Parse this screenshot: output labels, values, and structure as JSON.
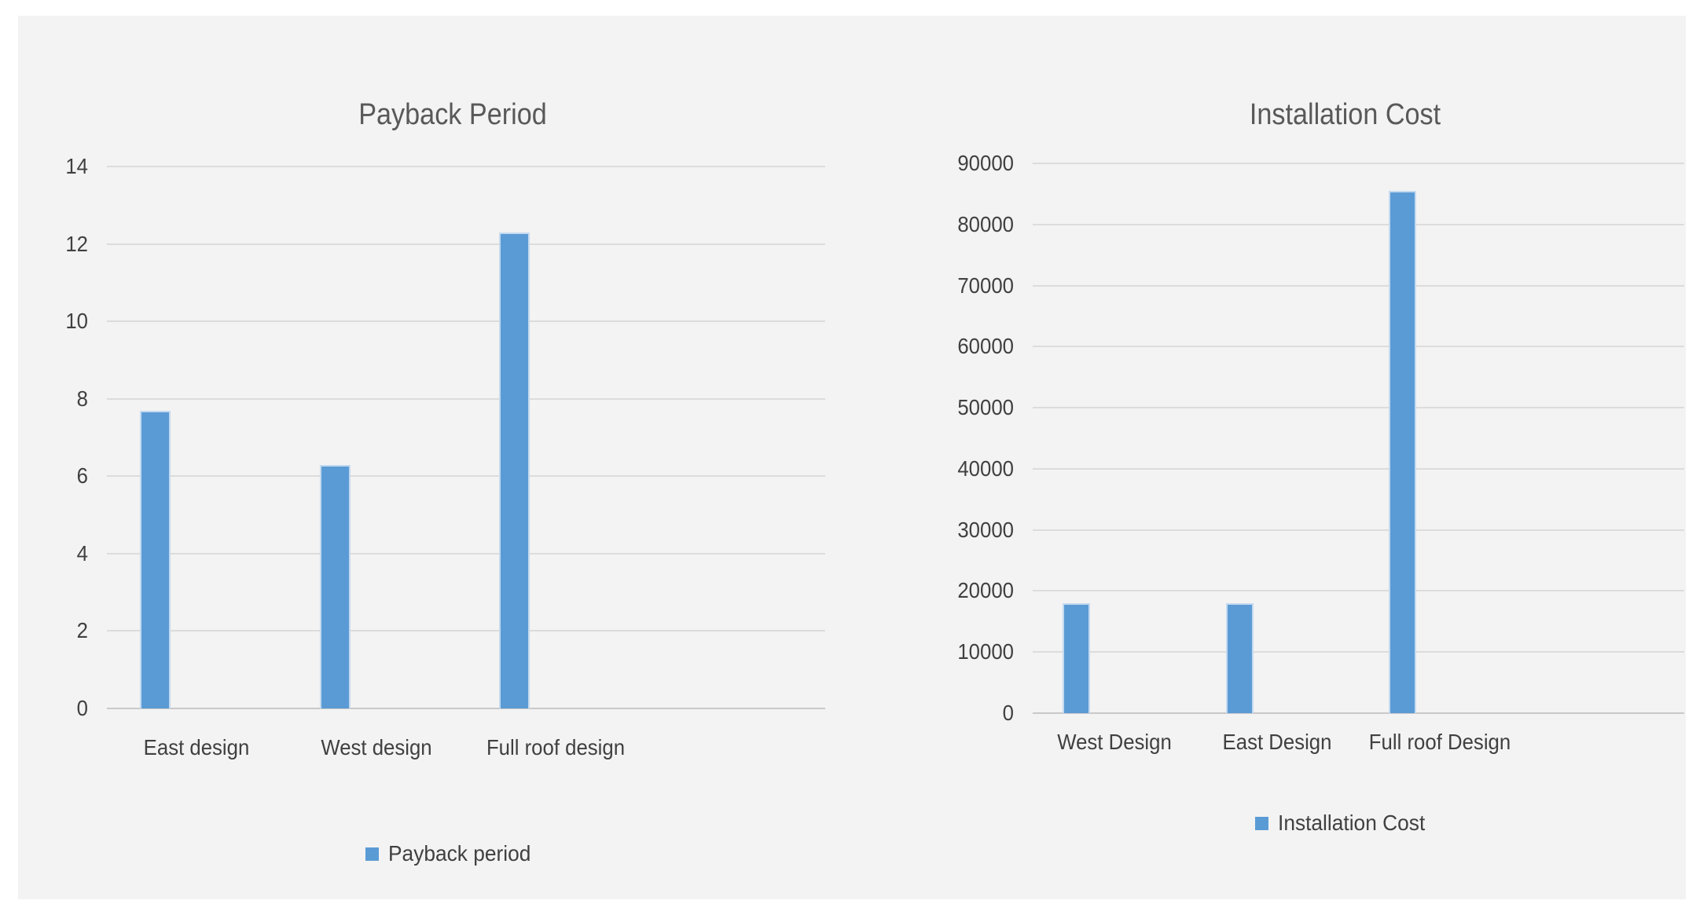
{
  "panel_background": "#f3f3f3",
  "accent_color": "#5b9bd5",
  "chart_data": [
    {
      "type": "bar",
      "title": "Payback Period",
      "categories": [
        "East design",
        "West design",
        "Full roof design"
      ],
      "series": [
        {
          "name": "Payback period",
          "values": [
            7.7,
            6.3,
            12.3
          ]
        }
      ],
      "xlabel": "",
      "ylabel": "",
      "ylim": [
        0,
        14
      ],
      "y_ticks": [
        "0",
        "2",
        "4",
        "6",
        "8",
        "10",
        "12",
        "14"
      ],
      "grid": true,
      "legend_position": "bottom",
      "legend_label": "Payback period",
      "bar_color": "#5b9bd5"
    },
    {
      "type": "bar",
      "title": "Installation Cost",
      "categories": [
        "West Design",
        "East Design",
        "Full roof Design"
      ],
      "series": [
        {
          "name": "Installation Cost",
          "values": [
            18000,
            18000,
            85500
          ]
        }
      ],
      "xlabel": "",
      "ylabel": "",
      "ylim": [
        0,
        90000
      ],
      "y_ticks": [
        "0",
        "10000",
        "20000",
        "30000",
        "40000",
        "50000",
        "60000",
        "70000",
        "80000",
        "90000"
      ],
      "grid": true,
      "legend_position": "bottom",
      "legend_label": "Installation Cost",
      "bar_color": "#5b9bd5"
    }
  ]
}
